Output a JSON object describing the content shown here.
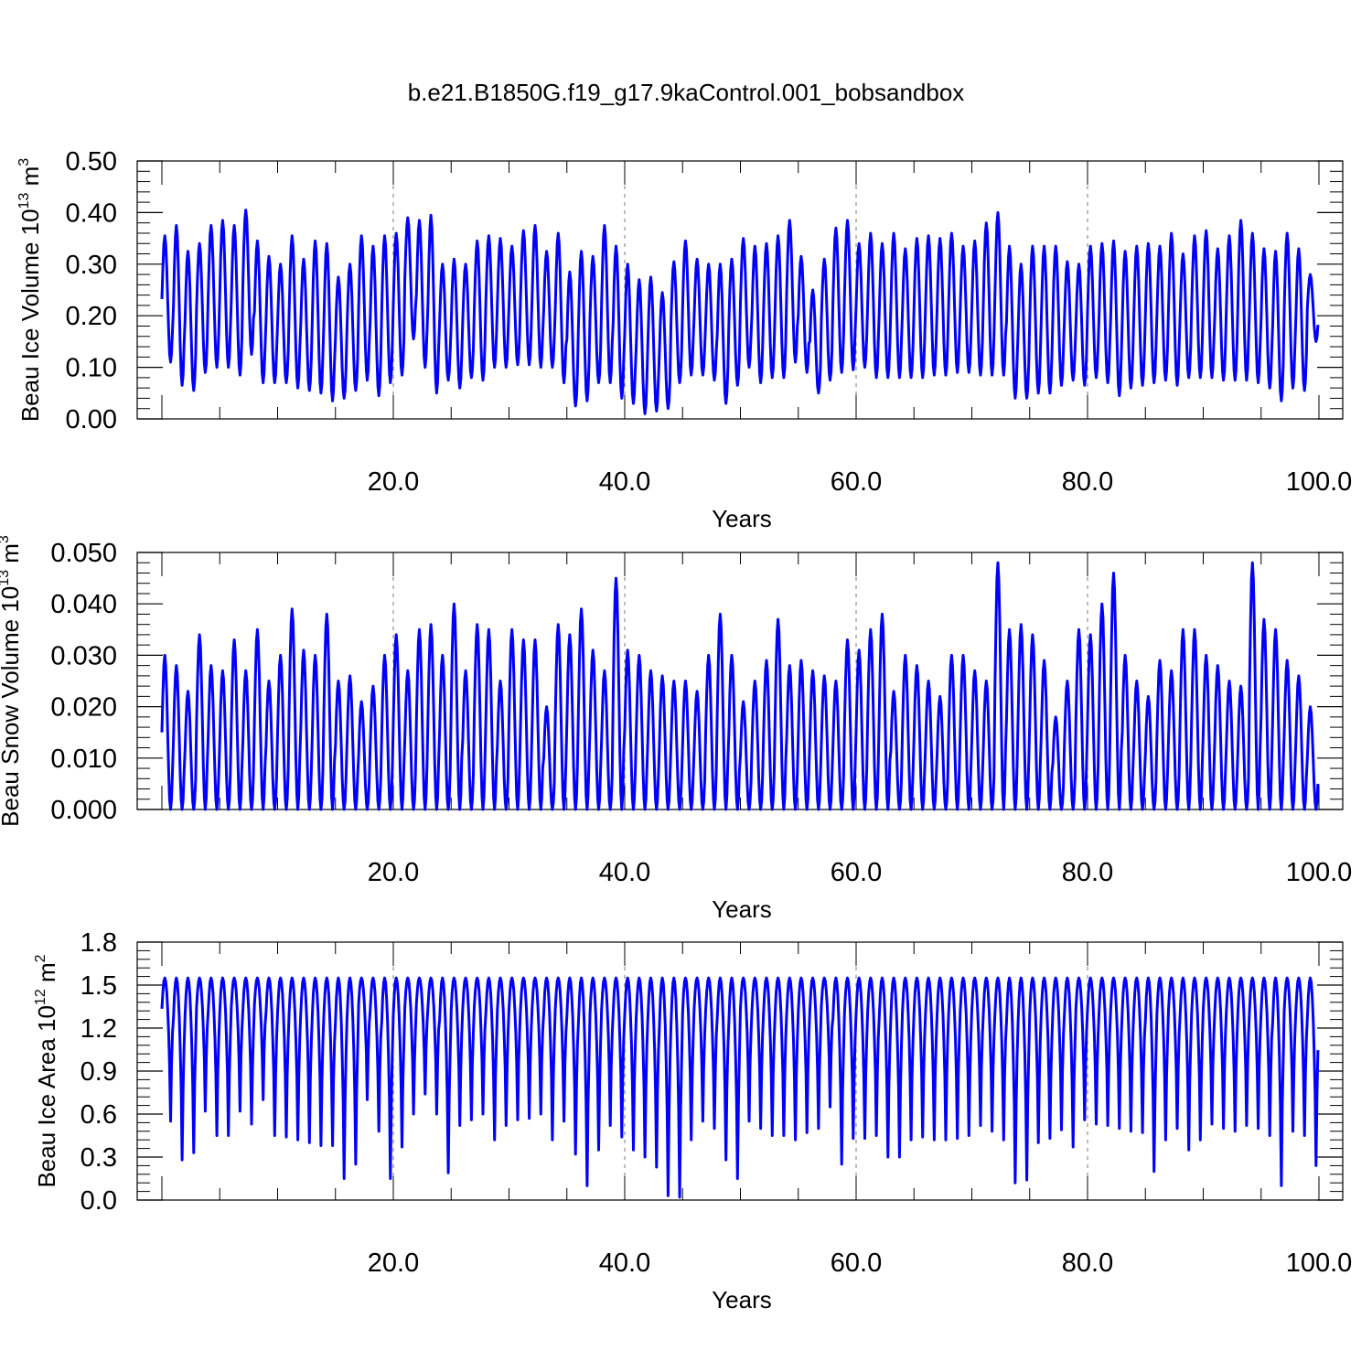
{
  "title": "b.e21.B1850G.f19_g17.9kaControl.001_bobsandbox",
  "series_color": "#0000ff",
  "chart_data": [
    {
      "type": "line",
      "ylabel": {
        "base": "Beau Ice Volume 10",
        "exp": "13",
        "unit": " m",
        "unit_exp": "3"
      },
      "xlabel": "Years",
      "xlim": [
        0,
        100
      ],
      "ylim": [
        0,
        0.5
      ],
      "xticks": [
        "20.0",
        "40.0",
        "60.0",
        "80.0",
        "100.0"
      ],
      "yticks": [
        "0.00",
        "0.10",
        "0.20",
        "0.30",
        "0.40",
        "0.50"
      ],
      "peaks": [
        0.355,
        0.375,
        0.325,
        0.34,
        0.375,
        0.385,
        0.375,
        0.405,
        0.345,
        0.315,
        0.3,
        0.355,
        0.31,
        0.345,
        0.34,
        0.275,
        0.3,
        0.355,
        0.335,
        0.355,
        0.36,
        0.39,
        0.385,
        0.395,
        0.3,
        0.31,
        0.3,
        0.345,
        0.355,
        0.35,
        0.335,
        0.365,
        0.375,
        0.325,
        0.36,
        0.285,
        0.325,
        0.315,
        0.375,
        0.335,
        0.3,
        0.27,
        0.275,
        0.245,
        0.305,
        0.345,
        0.31,
        0.3,
        0.3,
        0.31,
        0.35,
        0.335,
        0.34,
        0.355,
        0.385,
        0.315,
        0.25,
        0.31,
        0.37,
        0.385,
        0.34,
        0.36,
        0.34,
        0.36,
        0.33,
        0.35,
        0.355,
        0.35,
        0.36,
        0.335,
        0.345,
        0.38,
        0.4,
        0.335,
        0.3,
        0.335,
        0.335,
        0.335,
        0.305,
        0.3,
        0.335,
        0.34,
        0.345,
        0.325,
        0.335,
        0.34,
        0.335,
        0.36,
        0.32,
        0.355,
        0.365,
        0.33,
        0.355,
        0.385,
        0.36,
        0.33,
        0.325,
        0.36,
        0.33,
        0.28
      ],
      "troughs": [
        0.11,
        0.065,
        0.055,
        0.09,
        0.1,
        0.1,
        0.085,
        0.125,
        0.07,
        0.07,
        0.07,
        0.06,
        0.055,
        0.05,
        0.035,
        0.04,
        0.055,
        0.075,
        0.045,
        0.07,
        0.085,
        0.155,
        0.1,
        0.05,
        0.075,
        0.06,
        0.08,
        0.075,
        0.1,
        0.1,
        0.105,
        0.105,
        0.1,
        0.1,
        0.07,
        0.025,
        0.035,
        0.07,
        0.07,
        0.04,
        0.03,
        0.01,
        0.015,
        0.02,
        0.07,
        0.085,
        0.085,
        0.075,
        0.03,
        0.065,
        0.1,
        0.07,
        0.08,
        0.08,
        0.11,
        0.09,
        0.05,
        0.075,
        0.09,
        0.095,
        0.1,
        0.08,
        0.08,
        0.08,
        0.08,
        0.08,
        0.085,
        0.085,
        0.09,
        0.09,
        0.085,
        0.085,
        0.085,
        0.04,
        0.04,
        0.05,
        0.05,
        0.065,
        0.075,
        0.065,
        0.08,
        0.07,
        0.045,
        0.06,
        0.065,
        0.07,
        0.075,
        0.065,
        0.08,
        0.08,
        0.08,
        0.075,
        0.075,
        0.075,
        0.07,
        0.06,
        0.035,
        0.06,
        0.055,
        0.15
      ]
    },
    {
      "type": "line",
      "ylabel": {
        "base": "Beau Snow Volume 10",
        "exp": "13",
        "unit": " m",
        "unit_exp": "3"
      },
      "xlabel": "Years",
      "xlim": [
        0,
        100
      ],
      "ylim": [
        0,
        0.05
      ],
      "xticks": [
        "20.0",
        "40.0",
        "60.0",
        "80.0",
        "100.0"
      ],
      "yticks": [
        "0.000",
        "0.010",
        "0.020",
        "0.030",
        "0.040",
        "0.050"
      ],
      "peaks": [
        0.03,
        0.028,
        0.023,
        0.034,
        0.028,
        0.027,
        0.033,
        0.027,
        0.035,
        0.025,
        0.03,
        0.039,
        0.031,
        0.03,
        0.038,
        0.025,
        0.026,
        0.021,
        0.024,
        0.03,
        0.034,
        0.027,
        0.035,
        0.036,
        0.03,
        0.04,
        0.027,
        0.036,
        0.035,
        0.025,
        0.035,
        0.033,
        0.033,
        0.02,
        0.036,
        0.034,
        0.039,
        0.031,
        0.027,
        0.045,
        0.031,
        0.03,
        0.027,
        0.026,
        0.025,
        0.025,
        0.023,
        0.03,
        0.038,
        0.03,
        0.021,
        0.025,
        0.029,
        0.037,
        0.028,
        0.029,
        0.027,
        0.026,
        0.025,
        0.033,
        0.031,
        0.035,
        0.038,
        0.023,
        0.03,
        0.028,
        0.025,
        0.022,
        0.03,
        0.03,
        0.027,
        0.025,
        0.048,
        0.035,
        0.036,
        0.034,
        0.029,
        0.018,
        0.025,
        0.035,
        0.034,
        0.04,
        0.046,
        0.03,
        0.025,
        0.022,
        0.029,
        0.027,
        0.035,
        0.035,
        0.03,
        0.028,
        0.025,
        0.024,
        0.048,
        0.037,
        0.035,
        0.029,
        0.026,
        0.02
      ],
      "troughs": [
        0.0
      ]
    },
    {
      "type": "line",
      "ylabel": {
        "base": "Beau Ice Area 10",
        "exp": "12",
        "unit": " m",
        "unit_exp": "2"
      },
      "xlabel": "Years",
      "xlim": [
        0,
        100
      ],
      "ylim": [
        0,
        1.8
      ],
      "xticks": [
        "20.0",
        "40.0",
        "60.0",
        "80.0",
        "100.0"
      ],
      "yticks": [
        "0.0",
        "0.3",
        "0.6",
        "0.9",
        "1.2",
        "1.5",
        "1.8"
      ],
      "peaks": [
        1.55
      ],
      "troughs": [
        0.55,
        0.28,
        0.33,
        0.62,
        0.45,
        0.45,
        0.62,
        0.53,
        0.7,
        0.45,
        0.44,
        0.42,
        0.4,
        0.38,
        0.38,
        0.15,
        0.25,
        0.7,
        0.48,
        0.15,
        0.37,
        0.6,
        0.74,
        0.6,
        0.19,
        0.52,
        0.56,
        0.6,
        0.42,
        0.52,
        0.56,
        0.57,
        0.6,
        0.42,
        0.55,
        0.32,
        0.1,
        0.35,
        0.52,
        0.44,
        0.35,
        0.3,
        0.23,
        0.03,
        0.02,
        0.42,
        0.55,
        0.5,
        0.28,
        0.15,
        0.55,
        0.5,
        0.45,
        0.45,
        0.42,
        0.47,
        0.5,
        0.65,
        0.25,
        0.43,
        0.43,
        0.45,
        0.3,
        0.3,
        0.42,
        0.44,
        0.42,
        0.42,
        0.43,
        0.45,
        0.52,
        0.48,
        0.42,
        0.12,
        0.14,
        0.4,
        0.43,
        0.49,
        0.37,
        0.56,
        0.53,
        0.52,
        0.5,
        0.48,
        0.47,
        0.2,
        0.42,
        0.5,
        0.35,
        0.42,
        0.53,
        0.5,
        0.48,
        0.52,
        0.5,
        0.45,
        0.1,
        0.48,
        0.45,
        0.24
      ]
    }
  ]
}
